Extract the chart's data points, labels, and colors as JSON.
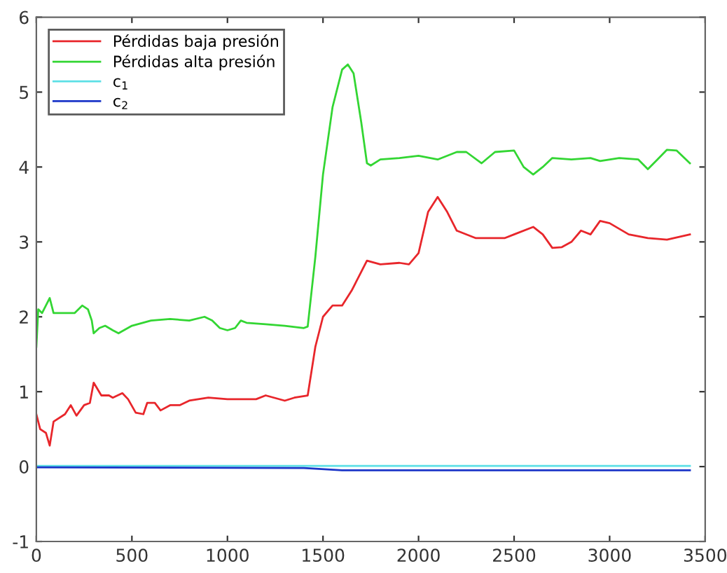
{
  "chart_data": {
    "type": "line",
    "xlim": [
      0,
      3500
    ],
    "ylim": [
      -1,
      6
    ],
    "xticks": [
      0,
      500,
      1000,
      1500,
      2000,
      2500,
      3000,
      3500
    ],
    "yticks": [
      -1,
      0,
      1,
      2,
      3,
      4,
      5,
      6
    ],
    "grid": false,
    "legend": "top left",
    "marker": "none",
    "line_style": "solid",
    "series": [
      {
        "name": "Pérdidas baja presión",
        "color": "#e8262b",
        "x": [
          0,
          20,
          50,
          70,
          90,
          150,
          180,
          210,
          250,
          280,
          300,
          340,
          380,
          400,
          450,
          480,
          520,
          560,
          580,
          620,
          650,
          700,
          750,
          800,
          900,
          1000,
          1100,
          1150,
          1200,
          1300,
          1350,
          1420,
          1460,
          1500,
          1550,
          1600,
          1650,
          1700,
          1730,
          1800,
          1900,
          1950,
          2000,
          2050,
          2100,
          2150,
          2200,
          2300,
          2450,
          2500,
          2600,
          2650,
          2700,
          2750,
          2800,
          2850,
          2900,
          2950,
          3000,
          3100,
          3200,
          3300,
          3420
        ],
        "values": [
          0.7,
          0.5,
          0.45,
          0.28,
          0.6,
          0.7,
          0.82,
          0.68,
          0.82,
          0.85,
          1.12,
          0.95,
          0.95,
          0.92,
          0.98,
          0.9,
          0.72,
          0.7,
          0.85,
          0.85,
          0.75,
          0.82,
          0.82,
          0.88,
          0.92,
          0.9,
          0.9,
          0.9,
          0.95,
          0.88,
          0.92,
          0.95,
          1.6,
          2.0,
          2.15,
          2.15,
          2.35,
          2.6,
          2.75,
          2.7,
          2.72,
          2.7,
          2.85,
          3.4,
          3.6,
          3.4,
          3.15,
          3.05,
          3.05,
          3.1,
          3.2,
          3.1,
          2.92,
          2.93,
          3.0,
          3.15,
          3.1,
          3.28,
          3.25,
          3.1,
          3.05,
          3.03,
          3.1
        ]
      },
      {
        "name": "Pérdidas alta presión",
        "color": "#33d633",
        "x": [
          0,
          10,
          30,
          50,
          70,
          90,
          150,
          200,
          240,
          270,
          290,
          300,
          330,
          360,
          400,
          430,
          500,
          600,
          700,
          800,
          880,
          920,
          960,
          1000,
          1040,
          1070,
          1100,
          1200,
          1300,
          1400,
          1420,
          1460,
          1500,
          1550,
          1600,
          1630,
          1660,
          1700,
          1730,
          1750,
          1800,
          1900,
          2000,
          2100,
          2200,
          2250,
          2330,
          2400,
          2500,
          2550,
          2600,
          2650,
          2700,
          2800,
          2900,
          2950,
          3050,
          3150,
          3200,
          3250,
          3300,
          3350,
          3420
        ],
        "values": [
          1.6,
          2.1,
          2.05,
          2.15,
          2.25,
          2.05,
          2.05,
          2.05,
          2.15,
          2.1,
          1.95,
          1.78,
          1.85,
          1.88,
          1.82,
          1.78,
          1.88,
          1.95,
          1.97,
          1.95,
          2.0,
          1.95,
          1.85,
          1.82,
          1.85,
          1.95,
          1.92,
          1.9,
          1.88,
          1.85,
          1.87,
          2.8,
          3.9,
          4.8,
          5.3,
          5.37,
          5.25,
          4.6,
          4.05,
          4.02,
          4.1,
          4.12,
          4.15,
          4.1,
          4.2,
          4.2,
          4.05,
          4.2,
          4.22,
          4.0,
          3.9,
          4.0,
          4.12,
          4.1,
          4.12,
          4.08,
          4.12,
          4.1,
          3.97,
          4.1,
          4.23,
          4.22,
          4.05
        ]
      },
      {
        "name": "c$_{1}$",
        "color": "#5ce0e6",
        "x": [
          0,
          3420
        ],
        "values": [
          0.01,
          0.01
        ]
      },
      {
        "name": "c$_{2}$",
        "color": "#1a35c8",
        "x": [
          0,
          1400,
          1600,
          3420
        ],
        "values": [
          -0.01,
          -0.02,
          -0.05,
          -0.05
        ]
      }
    ]
  }
}
